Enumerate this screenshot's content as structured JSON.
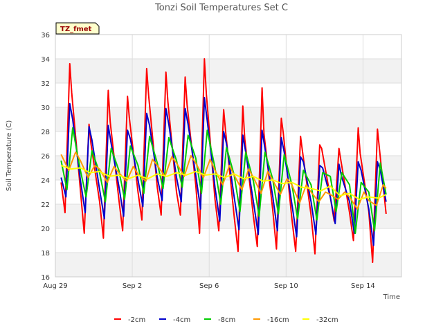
{
  "chart_data": {
    "type": "line",
    "title": "Tonzi Soil Temperatures Set C",
    "xlabel": "Time",
    "ylabel": "Soil Temperature (C)",
    "annotation": "TZ_fmet",
    "xlim": [
      0,
      18
    ],
    "ylim": [
      16,
      36
    ],
    "yticks": [
      16,
      18,
      20,
      22,
      24,
      26,
      28,
      30,
      32,
      34,
      36
    ],
    "xticks": [
      {
        "label": "Aug 29",
        "value": 0
      },
      {
        "label": "Sep 2",
        "value": 4
      },
      {
        "label": "Sep 6",
        "value": 8
      },
      {
        "label": "Sep 10",
        "value": 12
      },
      {
        "label": "Sep 14",
        "value": 16
      }
    ],
    "grid": true,
    "legend_position": "bottom",
    "series": [
      {
        "name": "-2cm",
        "color": "#ff0000",
        "x": [
          0.3,
          0.5,
          0.75,
          0.85,
          1.3,
          1.5,
          1.75,
          1.85,
          2.3,
          2.5,
          2.75,
          2.85,
          3.3,
          3.5,
          3.75,
          3.85,
          4.3,
          4.5,
          4.75,
          4.85,
          5.3,
          5.5,
          5.75,
          5.85,
          6.3,
          6.5,
          6.75,
          6.85,
          7.3,
          7.5,
          7.75,
          7.85,
          8.3,
          8.5,
          8.75,
          8.85,
          9.3,
          9.5,
          9.75,
          9.85,
          10.3,
          10.5,
          10.75,
          10.85,
          11.3,
          11.5,
          11.75,
          11.85,
          12.3,
          12.5,
          12.75,
          12.85,
          13.3,
          13.5,
          13.75,
          13.85,
          14.3,
          14.5,
          14.75,
          14.85,
          15.3,
          15.5,
          15.75,
          15.85,
          16.3,
          16.5,
          16.75,
          16.85,
          17.2
        ],
        "y": [
          23.8,
          21.3,
          33.6,
          31.2,
          23.2,
          19.6,
          28.6,
          27.0,
          22.2,
          19.2,
          31.4,
          28.8,
          22.4,
          19.8,
          30.9,
          29.1,
          23.0,
          20.7,
          33.2,
          31.0,
          23.4,
          21.1,
          32.9,
          30.5,
          23.0,
          21.1,
          32.5,
          30.2,
          23.6,
          19.6,
          34.0,
          31.1,
          22.4,
          19.8,
          29.8,
          28.1,
          21.0,
          18.1,
          30.1,
          27.4,
          21.0,
          18.5,
          31.6,
          27.8,
          21.6,
          18.3,
          29.1,
          27.9,
          20.8,
          18.1,
          27.6,
          26.4,
          21.1,
          17.9,
          26.9,
          26.6,
          22.6,
          20.6,
          26.6,
          25.6,
          21.3,
          19.0,
          28.3,
          26.2,
          21.4,
          17.2,
          28.2,
          26.6,
          21.2
        ]
      },
      {
        "name": "-4cm",
        "color": "#0000cc",
        "x": [
          0.3,
          0.55,
          0.75,
          0.9,
          1.3,
          1.55,
          1.75,
          1.9,
          2.3,
          2.55,
          2.75,
          2.9,
          3.3,
          3.55,
          3.75,
          3.9,
          4.3,
          4.55,
          4.75,
          4.9,
          5.3,
          5.55,
          5.75,
          5.9,
          6.3,
          6.55,
          6.75,
          6.9,
          7.3,
          7.55,
          7.75,
          7.9,
          8.3,
          8.55,
          8.75,
          8.9,
          9.3,
          9.55,
          9.75,
          9.9,
          10.3,
          10.55,
          10.75,
          10.9,
          11.3,
          11.55,
          11.75,
          11.9,
          12.3,
          12.55,
          12.75,
          12.9,
          13.3,
          13.55,
          13.75,
          13.9,
          14.3,
          14.55,
          14.75,
          14.9,
          15.3,
          15.55,
          15.75,
          15.9,
          16.3,
          16.55,
          16.75,
          16.9,
          17.2
        ],
        "y": [
          24.2,
          22.6,
          30.3,
          29.0,
          24.0,
          21.3,
          28.4,
          27.3,
          23.2,
          20.8,
          28.5,
          27.0,
          23.5,
          21.0,
          28.1,
          27.4,
          24.0,
          21.8,
          29.5,
          28.5,
          24.2,
          22.3,
          29.9,
          28.6,
          24.2,
          22.2,
          29.9,
          28.6,
          24.4,
          21.6,
          30.8,
          28.9,
          23.4,
          20.6,
          28.0,
          27.0,
          22.6,
          19.9,
          27.7,
          26.3,
          22.2,
          19.5,
          28.1,
          26.6,
          22.7,
          19.8,
          27.5,
          26.3,
          22.0,
          19.3,
          25.9,
          25.5,
          22.2,
          19.5,
          25.2,
          25.0,
          22.6,
          20.4,
          25.3,
          24.2,
          22.2,
          19.6,
          25.5,
          24.8,
          21.6,
          18.6,
          25.5,
          24.8,
          22.2
        ]
      },
      {
        "name": "-8cm",
        "color": "#00cc00",
        "x": [
          0.3,
          0.6,
          0.9,
          1.3,
          1.6,
          1.9,
          2.3,
          2.6,
          2.9,
          3.3,
          3.6,
          3.9,
          4.3,
          4.6,
          4.9,
          5.3,
          5.6,
          5.9,
          6.3,
          6.6,
          6.9,
          7.3,
          7.6,
          7.9,
          8.3,
          8.6,
          8.9,
          9.3,
          9.6,
          9.9,
          10.3,
          10.6,
          10.9,
          11.3,
          11.6,
          11.9,
          12.3,
          12.6,
          12.9,
          13.3,
          13.6,
          13.9,
          14.3,
          14.6,
          14.9,
          15.3,
          15.6,
          15.9,
          16.3,
          16.6,
          16.9,
          17.2
        ],
        "y": [
          25.6,
          23.2,
          28.3,
          24.8,
          22.6,
          26.4,
          24.6,
          22.2,
          26.6,
          24.8,
          22.4,
          26.8,
          25.2,
          22.9,
          27.6,
          25.4,
          23.3,
          27.5,
          25.6,
          23.4,
          27.7,
          25.8,
          22.9,
          28.1,
          25.0,
          22.0,
          26.7,
          24.4,
          21.4,
          26.3,
          23.9,
          21.0,
          26.3,
          24.1,
          21.2,
          26.1,
          23.6,
          20.8,
          24.8,
          23.6,
          20.7,
          24.6,
          24.3,
          21.4,
          24.6,
          23.6,
          19.6,
          23.8,
          23.0,
          19.8,
          25.4,
          22.8
        ]
      },
      {
        "name": "-16cm",
        "color": "#ff9900",
        "x": [
          0.3,
          0.7,
          1.05,
          1.3,
          1.7,
          2.05,
          2.3,
          2.7,
          3.05,
          3.3,
          3.7,
          4.05,
          4.3,
          4.7,
          5.05,
          5.3,
          5.7,
          6.05,
          6.3,
          6.7,
          7.05,
          7.3,
          7.7,
          8.05,
          8.3,
          8.7,
          9.05,
          9.3,
          9.7,
          10.05,
          10.3,
          10.7,
          11.05,
          11.3,
          11.7,
          12.05,
          12.3,
          12.7,
          13.05,
          13.3,
          13.7,
          14.05,
          14.3,
          14.7,
          15.05,
          15.3,
          15.7,
          16.05,
          16.3,
          16.7,
          17.05,
          17.2
        ],
        "y": [
          26.1,
          24.8,
          26.3,
          25.6,
          24.2,
          25.2,
          24.9,
          23.8,
          25.1,
          24.6,
          23.9,
          25.1,
          24.5,
          23.9,
          25.7,
          25.2,
          24.3,
          25.9,
          25.4,
          24.3,
          26.0,
          25.4,
          24.2,
          25.7,
          24.8,
          23.6,
          25.2,
          24.4,
          23.2,
          24.9,
          24.2,
          22.9,
          24.7,
          24.0,
          22.8,
          24.1,
          23.6,
          22.1,
          23.6,
          23.0,
          22.2,
          23.0,
          22.8,
          22.4,
          23.0,
          22.6,
          21.6,
          23.0,
          22.3,
          21.9,
          23.6,
          23.3
        ]
      },
      {
        "name": "-32cm",
        "color": "#ffff00",
        "x": [
          0.3,
          0.8,
          1.3,
          1.8,
          2.3,
          2.8,
          3.3,
          3.8,
          4.3,
          4.8,
          5.3,
          5.8,
          6.3,
          6.8,
          7.3,
          7.8,
          8.3,
          8.8,
          9.3,
          9.8,
          10.3,
          10.8,
          11.3,
          11.8,
          12.3,
          12.8,
          13.3,
          13.8,
          14.3,
          14.8,
          15.3,
          15.8,
          16.3,
          16.8,
          17.2
        ],
        "y": [
          25.2,
          24.9,
          25.0,
          24.6,
          24.7,
          24.3,
          24.4,
          24.1,
          24.4,
          24.1,
          24.5,
          24.3,
          24.6,
          24.4,
          24.7,
          24.4,
          24.5,
          24.2,
          24.5,
          24.1,
          24.3,
          23.9,
          24.0,
          23.7,
          23.8,
          23.4,
          23.3,
          23.1,
          23.5,
          22.7,
          22.9,
          22.4,
          22.6,
          22.5,
          22.8
        ]
      }
    ]
  }
}
